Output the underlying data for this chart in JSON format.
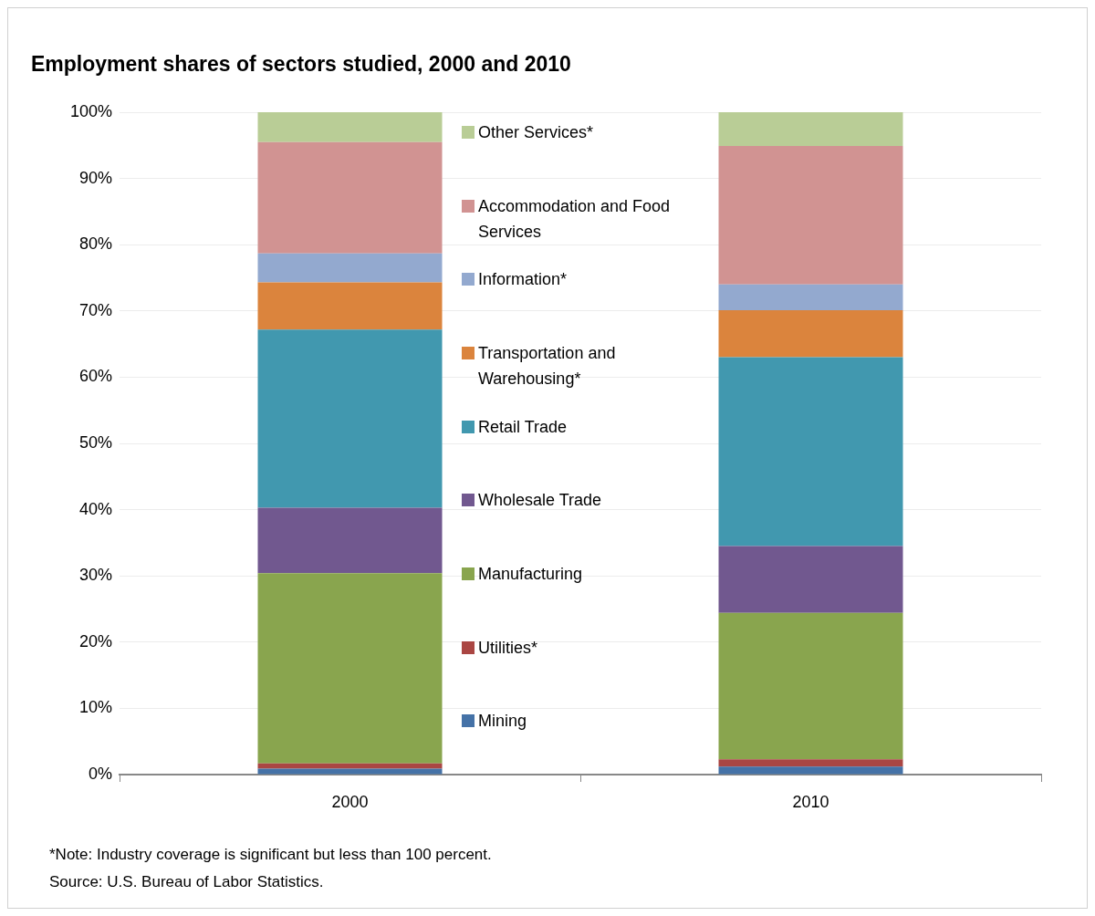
{
  "chart_data": {
    "type": "bar",
    "title": "Employment shares of sectors studied, 2000 and 2010",
    "categories": [
      "2000",
      "2010"
    ],
    "stacked": true,
    "ylim": [
      0,
      100
    ],
    "yticks": [
      {
        "value": 0,
        "label": "0%"
      },
      {
        "value": 10,
        "label": "10%"
      },
      {
        "value": 20,
        "label": "20%"
      },
      {
        "value": 30,
        "label": "30%"
      },
      {
        "value": 40,
        "label": "40%"
      },
      {
        "value": 50,
        "label": "50%"
      },
      {
        "value": 60,
        "label": "60%"
      },
      {
        "value": 70,
        "label": "70%"
      },
      {
        "value": 80,
        "label": "80%"
      },
      {
        "value": 90,
        "label": "90%"
      },
      {
        "value": 100,
        "label": "100%"
      }
    ],
    "grid": "y",
    "legend": "right",
    "series": [
      {
        "name": "Mining",
        "color": "#4572a7",
        "values": [
          0.9,
          1.2
        ]
      },
      {
        "name": "Utilities*",
        "color": "#aa4643",
        "values": [
          0.8,
          1.1
        ]
      },
      {
        "name": "Manufacturing",
        "color": "#89a54e",
        "values": [
          28.7,
          22.1
        ]
      },
      {
        "name": "Wholesale Trade",
        "color": "#71588f",
        "values": [
          9.9,
          10.1
        ]
      },
      {
        "name": "Retail Trade",
        "color": "#4198af",
        "values": [
          26.9,
          28.5
        ]
      },
      {
        "name": "Transportation and Warehousing*",
        "color": "#db843d",
        "values": [
          7.1,
          7.1
        ]
      },
      {
        "name": "Information*",
        "color": "#93a9cf",
        "values": [
          4.4,
          3.9
        ]
      },
      {
        "name": "Accommodation and Food Services",
        "color": "#d19392",
        "values": [
          16.8,
          20.9
        ]
      },
      {
        "name": "Other Services*",
        "color": "#b9cd96",
        "values": [
          4.5,
          5.1
        ]
      }
    ],
    "annotations": [
      "*Note: Industry coverage is significant but less than 100 percent.",
      "Source: U.S. Bureau of Labor Statistics."
    ]
  }
}
